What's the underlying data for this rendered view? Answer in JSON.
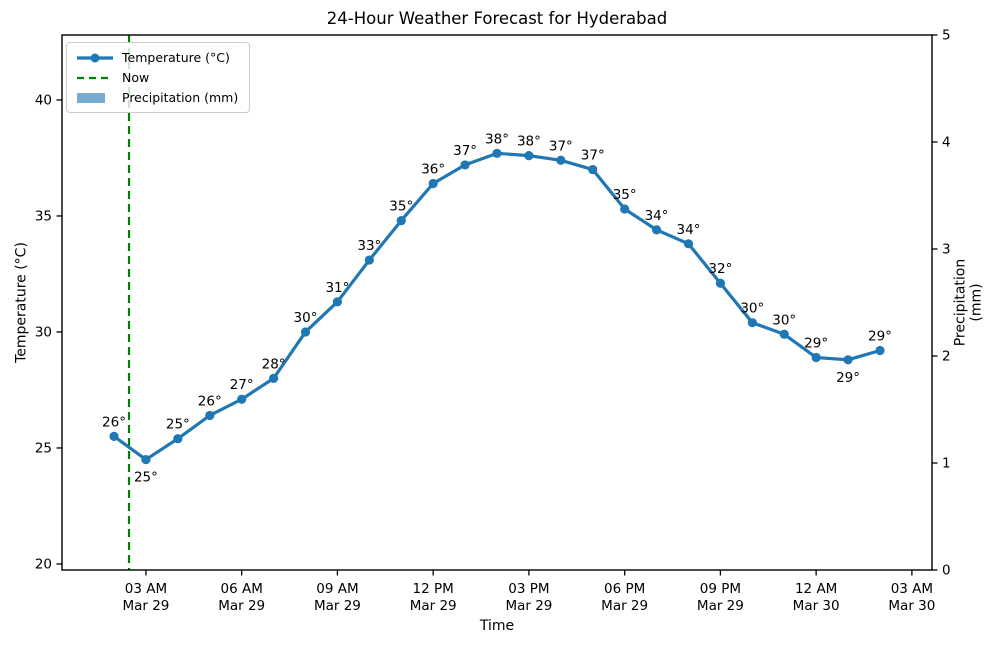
{
  "figure": {
    "title": "24-Hour Weather Forecast for Hyderabad",
    "background": "#ffffff"
  },
  "legend": {
    "items": [
      {
        "label": "Temperature (°C)",
        "swatch": "line-with-marker",
        "color": "#1f77b4"
      },
      {
        "label": "Now",
        "swatch": "dashed-line",
        "color": "#008000"
      },
      {
        "label": "Precipitation (mm)",
        "swatch": "filled-patch",
        "color": "#78add2"
      }
    ]
  },
  "chart_data": {
    "type": "line",
    "title": "24-Hour Weather Forecast for Hyderabad",
    "xlabel": "Time",
    "ylabel_left": "Temperature (°C)",
    "ylabel_right": "Precipitation (mm)",
    "grid": false,
    "legend_position": "upper-left",
    "axis_color": "#000000",
    "text_color": "#000000",
    "x_lim_hours": [
      -1.63,
      25.63
    ],
    "x_hours": [
      0,
      1,
      2,
      3,
      4,
      5,
      6,
      7,
      8,
      9,
      10,
      11,
      12,
      13,
      14,
      15,
      16,
      17,
      18,
      19,
      20,
      21,
      22,
      23,
      24
    ],
    "x_ticks": [
      {
        "hour": 1,
        "line1": "03 AM",
        "line2": "Mar 29"
      },
      {
        "hour": 4,
        "line1": "06 AM",
        "line2": "Mar 29"
      },
      {
        "hour": 7,
        "line1": "09 AM",
        "line2": "Mar 29"
      },
      {
        "hour": 10,
        "line1": "12 PM",
        "line2": "Mar 29"
      },
      {
        "hour": 13,
        "line1": "03 PM",
        "line2": "Mar 29"
      },
      {
        "hour": 16,
        "line1": "06 PM",
        "line2": "Mar 29"
      },
      {
        "hour": 19,
        "line1": "09 PM",
        "line2": "Mar 29"
      },
      {
        "hour": 22,
        "line1": "12 AM",
        "line2": "Mar 30"
      },
      {
        "hour": 25,
        "line1": "03 AM",
        "line2": "Mar 30"
      }
    ],
    "y_left": {
      "label": "Temperature (°C)",
      "ticks": [
        20,
        25,
        30,
        35,
        40
      ],
      "lim": [
        19.74,
        42.8
      ]
    },
    "y_right": {
      "label": "Precipitation (mm)",
      "ticks": [
        0,
        1,
        2,
        3,
        4,
        5
      ],
      "lim": [
        0,
        5
      ]
    },
    "series": [
      {
        "name": "Temperature (°C)",
        "type": "line",
        "color": "#1f77b4",
        "line_width": 3.2,
        "marker": "circle",
        "values": [
          25.5,
          24.5,
          25.4,
          26.4,
          27.1,
          28.0,
          30.0,
          31.3,
          33.1,
          34.8,
          36.4,
          37.2,
          37.7,
          37.6,
          37.4,
          37.0,
          35.3,
          34.4,
          33.8,
          32.1,
          30.4,
          29.9,
          28.9,
          28.8,
          29.2
        ],
        "point_labels": [
          "26°",
          "25°",
          "25°",
          "26°",
          "27°",
          "28°",
          "30°",
          "31°",
          "33°",
          "35°",
          "36°",
          "37°",
          "38°",
          "38°",
          "37°",
          "37°",
          "35°",
          "34°",
          "34°",
          "32°",
          "30°",
          "30°",
          "29°",
          "29°",
          "29°"
        ],
        "labels_below_indices": [
          1,
          23
        ]
      },
      {
        "name": "Precipitation (mm)",
        "type": "bar",
        "color": "#78add2",
        "values": [
          0,
          0,
          0,
          0,
          0,
          0,
          0,
          0,
          0,
          0,
          0,
          0,
          0,
          0,
          0,
          0,
          0,
          0,
          0,
          0,
          0,
          0,
          0,
          0,
          0
        ]
      }
    ],
    "now_line": {
      "label": "Now",
      "color": "#008000",
      "x_hour": 0.47,
      "dash": [
        8,
        5
      ]
    }
  }
}
